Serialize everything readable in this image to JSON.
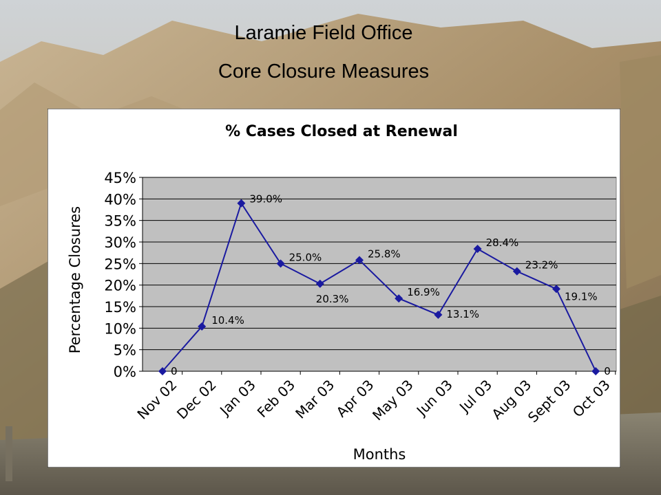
{
  "slide": {
    "title": "Laramie Field Office",
    "subtitle": "Core Closure Measures"
  },
  "colors": {
    "plot_area": "#c0c0c0",
    "series_line": "#1a1aa0",
    "chart_background": "#ffffff"
  },
  "chart_data": {
    "type": "line",
    "title": "% Cases Closed at Renewal",
    "xlabel": "Months",
    "ylabel": "Percentage Closures",
    "categories": [
      "Nov 02",
      "Dec 02",
      "Jan 03",
      "Feb 03",
      "Mar 03",
      "Apr 03",
      "May 03",
      "Jun 03",
      "Jul 03",
      "Aug 03",
      "Sept 03",
      "Oct 03"
    ],
    "series": [
      {
        "values": [
          0,
          10.4,
          39.0,
          25.0,
          20.3,
          25.8,
          16.9,
          13.1,
          28.4,
          23.2,
          19.1,
          0
        ],
        "labels": [
          "0",
          "10.4%",
          "39.0%",
          "25.0%",
          "20.3%",
          "25.8%",
          "16.9%",
          "13.1%",
          "28.4%",
          "23.2%",
          "19.1%",
          "0"
        ]
      }
    ],
    "ylim": [
      0,
      45
    ],
    "yticks": [
      0,
      5,
      10,
      15,
      20,
      25,
      30,
      35,
      40,
      45
    ],
    "ytick_labels": [
      "0%",
      "5%",
      "10%",
      "15%",
      "20%",
      "25%",
      "30%",
      "35%",
      "40%",
      "45%"
    ],
    "grid": true,
    "marker": "diamond"
  }
}
